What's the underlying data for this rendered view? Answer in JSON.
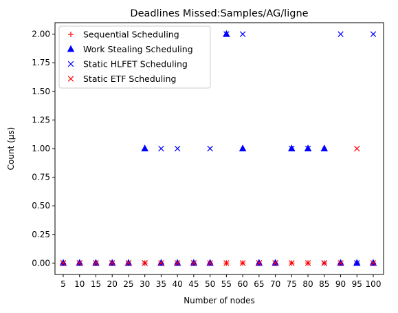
{
  "chart_data": {
    "type": "scatter",
    "title": "Deadlines Missed:Samples/AG/ligne",
    "xlabel": "Number of nodes",
    "ylabel": "Count (µs)",
    "categories": [
      5,
      10,
      15,
      20,
      25,
      30,
      35,
      40,
      45,
      50,
      55,
      60,
      65,
      70,
      75,
      80,
      85,
      90,
      95,
      100
    ],
    "ylim": [
      -0.1,
      2.1
    ],
    "yticks": [
      "0.00",
      "0.25",
      "0.50",
      "0.75",
      "1.00",
      "1.25",
      "1.50",
      "1.75",
      "2.00"
    ],
    "grid": false,
    "legend_position": "top-left",
    "series": [
      {
        "name": "Sequential Scheduling",
        "marker": "plus",
        "color": "#ff0000",
        "values": [
          0,
          0,
          0,
          0,
          0,
          0,
          0,
          0,
          0,
          0,
          0,
          0,
          0,
          0,
          0,
          0,
          0,
          0,
          0,
          0
        ]
      },
      {
        "name": "Work Stealing Scheduling",
        "marker": "triangle",
        "color": "#0000ff",
        "values": [
          0,
          0,
          0,
          0,
          0,
          1,
          0,
          0,
          0,
          0,
          2,
          1,
          0,
          0,
          1,
          1,
          1,
          0,
          0,
          0
        ]
      },
      {
        "name": "Static HLFET Scheduling",
        "marker": "x",
        "color": "#0000ff",
        "values": [
          0,
          0,
          0,
          0,
          0,
          0,
          1,
          1,
          0,
          1,
          2,
          2,
          0,
          0,
          1,
          1,
          0,
          2,
          0,
          2
        ]
      },
      {
        "name": "Static ETF Scheduling",
        "marker": "x",
        "color": "#ff0000",
        "values": [
          0,
          0,
          0,
          0,
          0,
          0,
          0,
          0,
          0,
          0,
          0,
          0,
          0,
          0,
          0,
          0,
          0,
          0,
          1,
          0
        ]
      }
    ]
  }
}
